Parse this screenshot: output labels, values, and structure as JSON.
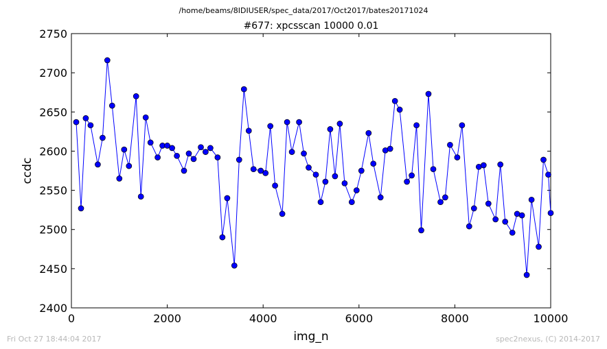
{
  "figure": {
    "suptitle": "/home/beams/8IDIUSER/spec_data/2017/Oct2017/bates20171024",
    "footer_left": "Fri Oct 27 18:44:04 2017",
    "footer_right": "spec2nexus, (C) 2014-2017"
  },
  "chart_data": {
    "type": "line",
    "title": "#677: xpcsscan 10000 0.01",
    "xlabel": "img_n",
    "ylabel": "ccdc",
    "xlim": [
      0,
      10000
    ],
    "ylim": [
      2400,
      2750
    ],
    "xticks": [
      0,
      2000,
      4000,
      6000,
      8000,
      10000
    ],
    "yticks": [
      2400,
      2450,
      2500,
      2550,
      2600,
      2650,
      2700,
      2750
    ],
    "grid": false,
    "legend": "none",
    "line_color": "#0000ff",
    "marker": "circle",
    "series": [
      {
        "x": [
          100,
          200,
          300,
          400,
          550,
          650,
          750,
          850,
          1000,
          1100,
          1200,
          1350,
          1450,
          1550,
          1650,
          1800,
          1900,
          2000,
          2100,
          2200,
          2350,
          2450,
          2550,
          2700,
          2800,
          2900,
          3050,
          3150,
          3250,
          3400,
          3500,
          3600,
          3700,
          3800,
          3950,
          4050,
          4150,
          4250,
          4400,
          4500,
          4600,
          4750,
          4850,
          4950,
          5100,
          5200,
          5300,
          5400,
          5500,
          5600,
          5700,
          5850,
          5950,
          6050,
          6200,
          6300,
          6450,
          6550,
          6650,
          6750,
          6850,
          7000,
          7100,
          7200,
          7300,
          7450,
          7550,
          7700,
          7800,
          7900,
          8050,
          8150,
          8300,
          8400,
          8500,
          8600,
          8700,
          8850,
          8950,
          9050,
          9200,
          9300,
          9400,
          9500,
          9600,
          9750,
          9850,
          9950,
          10000
        ],
        "y": [
          2637,
          2527,
          2642,
          2633,
          2583,
          2617,
          2716,
          2658,
          2565,
          2602,
          2581,
          2670,
          2542,
          2643,
          2611,
          2592,
          2607,
          2607,
          2604,
          2594,
          2575,
          2597,
          2590,
          2605,
          2599,
          2604,
          2592,
          2490,
          2540,
          2454,
          2589,
          2679,
          2626,
          2577,
          2575,
          2572,
          2632,
          2556,
          2520,
          2637,
          2599,
          2637,
          2597,
          2579,
          2570,
          2535,
          2561,
          2628,
          2568,
          2635,
          2559,
          2535,
          2550,
          2575,
          2623,
          2584,
          2541,
          2601,
          2603,
          2664,
          2653,
          2561,
          2569,
          2633,
          2499,
          2673,
          2577,
          2535,
          2541,
          2608,
          2592,
          2633,
          2504,
          2527,
          2580,
          2582,
          2533,
          2513,
          2583,
          2510,
          2496,
          2520,
          2518,
          2442,
          2538,
          2478,
          2589,
          2570,
          2521
        ]
      }
    ]
  }
}
